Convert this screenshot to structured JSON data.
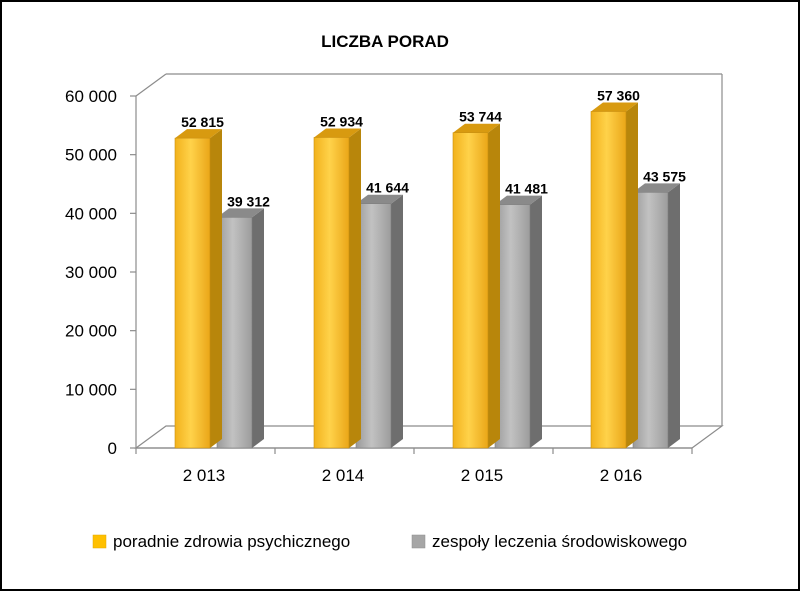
{
  "chart_data": {
    "type": "bar",
    "title": "LICZBA PORAD",
    "xlabel": "",
    "ylabel": "",
    "categories": [
      "2 013",
      "2 014",
      "2 015",
      "2 016"
    ],
    "series": [
      {
        "name": "poradnie zdrowia psychicznego",
        "values": [
          52815,
          52934,
          53744,
          57360
        ],
        "labels": [
          "52 815",
          "52 934",
          "53 744",
          "57 360"
        ],
        "color": "#FFC000"
      },
      {
        "name": "zespoły leczenia środowiskowego",
        "values": [
          39312,
          41644,
          41481,
          43575
        ],
        "labels": [
          "39 312",
          "41 644",
          "41 481",
          "43 575"
        ],
        "color": "#A6A6A6"
      }
    ],
    "yticks": [
      {
        "value": 0,
        "label": "0"
      },
      {
        "value": 10000,
        "label": "10 000"
      },
      {
        "value": 20000,
        "label": "20 000"
      },
      {
        "value": 30000,
        "label": "30 000"
      },
      {
        "value": 40000,
        "label": "40 000"
      },
      {
        "value": 50000,
        "label": "50 000"
      },
      {
        "value": 60000,
        "label": "60 000"
      }
    ],
    "ylim": [
      0,
      60000
    ],
    "grid": false,
    "style": "3d-clustered-column",
    "legend_position": "bottom"
  }
}
